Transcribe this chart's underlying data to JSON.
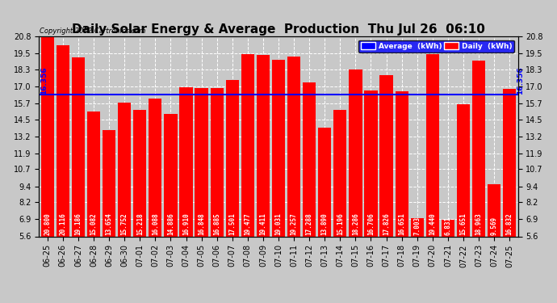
{
  "title": "Daily Solar Energy & Average  Production  Thu Jul 26  06:10",
  "copyright": "Copyright 2012 Cartronics.com",
  "categories": [
    "06-25",
    "06-26",
    "06-27",
    "06-28",
    "06-29",
    "06-30",
    "07-01",
    "07-02",
    "07-03",
    "07-04",
    "07-05",
    "07-06",
    "07-07",
    "07-08",
    "07-09",
    "07-10",
    "07-11",
    "07-12",
    "07-13",
    "07-14",
    "07-15",
    "07-16",
    "07-17",
    "07-18",
    "07-19",
    "07-20",
    "07-21",
    "07-22",
    "07-23",
    "07-24",
    "07-25"
  ],
  "values": [
    20.8,
    20.116,
    19.186,
    15.082,
    13.654,
    15.752,
    15.218,
    16.088,
    14.886,
    16.91,
    16.848,
    16.885,
    17.501,
    19.477,
    19.411,
    19.031,
    19.257,
    17.288,
    13.89,
    15.196,
    18.286,
    16.706,
    17.826,
    16.651,
    7.003,
    19.44,
    6.831,
    15.651,
    18.963,
    9.569,
    16.832
  ],
  "average": 16.356,
  "bar_color": "#FF0000",
  "average_color": "#0000FF",
  "background_color": "#C8C8C8",
  "plot_bg_color": "#C8C8C8",
  "ylim": [
    5.6,
    20.8
  ],
  "yticks": [
    5.6,
    6.9,
    8.2,
    9.4,
    10.7,
    11.9,
    13.2,
    14.5,
    15.7,
    17.0,
    18.3,
    19.5,
    20.8
  ],
  "legend_avg_label": "Average  (kWh)",
  "legend_daily_label": "Daily  (kWh)",
  "avg_label": "16.356",
  "title_fontsize": 11,
  "tick_fontsize": 7,
  "bar_label_fontsize": 5.5
}
